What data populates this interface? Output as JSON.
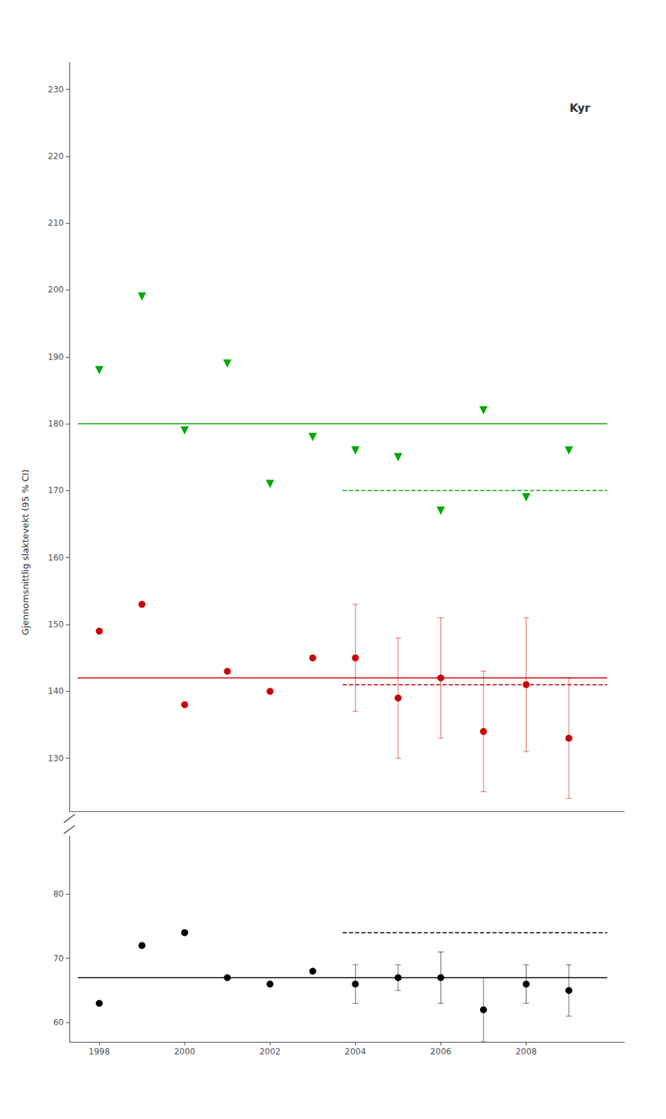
{
  "chart_data": [
    {
      "type": "scatter",
      "ylabel": "Gjennomsnittlig slaktevekt (95 % CI)",
      "annotations": [
        {
          "text": "Kyr",
          "x": 2009.5,
          "y": 228
        }
      ],
      "xlim": [
        1997.3,
        2010.3
      ],
      "ylim": [
        122,
        234
      ],
      "yticks": [
        130,
        140,
        150,
        160,
        170,
        180,
        190,
        200,
        210,
        220,
        230
      ],
      "tick_labels": "y",
      "grid": false,
      "series": [
        {
          "type": "scatter",
          "color": "#cc0000",
          "marker": "circle",
          "x": [
            1998,
            1999,
            2000,
            2001,
            2002,
            2003,
            2004,
            2005,
            2006,
            2007,
            2008,
            2009
          ],
          "values": [
            149,
            153,
            138,
            143,
            140,
            145,
            145,
            139,
            142,
            134,
            141,
            133
          ],
          "errors": [
            null,
            null,
            null,
            null,
            null,
            null,
            8,
            9,
            9,
            9,
            10,
            9
          ]
        },
        {
          "type": "scatter",
          "color": "#00aa00",
          "marker": "triangle_down",
          "x": [
            1998,
            1999,
            2000,
            2001,
            2002,
            2003,
            2004,
            2005,
            2006,
            2007,
            2008,
            2009
          ],
          "values": [
            188,
            199,
            179,
            189,
            171,
            178,
            176,
            175,
            167,
            182,
            169,
            176
          ]
        },
        {
          "type": "line",
          "color": "#cc0000",
          "line_style": "solid",
          "x": [
            1997.5,
            2009.9
          ],
          "values": [
            142,
            142
          ]
        },
        {
          "type": "line",
          "color": "#00aa00",
          "line_style": "solid",
          "x": [
            1997.5,
            2009.9
          ],
          "values": [
            180,
            180
          ]
        },
        {
          "type": "line",
          "color": "#cc0000",
          "line_style": "dashed",
          "x": [
            2003.7,
            2009.9
          ],
          "values": [
            141,
            141
          ]
        },
        {
          "type": "line",
          "color": "#00aa00",
          "line_style": "dashed",
          "x": [
            2003.7,
            2009.9
          ],
          "values": [
            170,
            170
          ]
        }
      ]
    },
    {
      "type": "scatter",
      "xlim": [
        1997.3,
        2010.3
      ],
      "xticks": [
        1998,
        2000,
        2002,
        2004,
        2006,
        2008
      ],
      "ylim": [
        57,
        89
      ],
      "yticks": [
        60,
        70,
        80
      ],
      "grid": false,
      "series": [
        {
          "type": "scatter",
          "color": "#000000",
          "marker": "circle",
          "x": [
            1998,
            1999,
            2000,
            2001,
            2002,
            2003,
            2004,
            2005,
            2006,
            2007,
            2008,
            2009
          ],
          "values": [
            63,
            72,
            74,
            67,
            66,
            68,
            66,
            67,
            67,
            62,
            66,
            65
          ],
          "errors": [
            null,
            null,
            null,
            null,
            null,
            null,
            3,
            2,
            4,
            5,
            3,
            4
          ]
        },
        {
          "type": "line",
          "color": "#000000",
          "line_style": "solid",
          "x": [
            1997.5,
            2009.9
          ],
          "values": [
            67,
            67
          ]
        },
        {
          "type": "line",
          "color": "#000000",
          "line_style": "dashed",
          "x": [
            2003.7,
            2009.9
          ],
          "values": [
            74,
            74
          ]
        }
      ]
    }
  ]
}
